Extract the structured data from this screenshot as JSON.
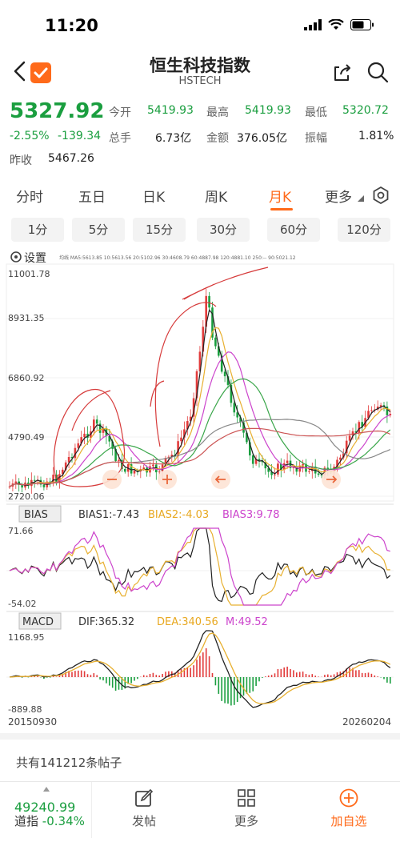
{
  "status": {
    "time": "11:20"
  },
  "header": {
    "title": "恒生科技指数",
    "subtitle": "HSTECH"
  },
  "quote": {
    "price": "5327.92",
    "change_pct": "-2.55%",
    "change_abs": "-139.34",
    "prev_close_label": "昨收",
    "prev_close": "5467.26",
    "open_label": "今开",
    "open": "5419.93",
    "high_label": "最高",
    "high": "5419.93",
    "low_label": "最低",
    "low": "5320.72",
    "volume_label": "总手",
    "volume": "6.73亿",
    "amount_label": "金额",
    "amount": "376.05亿",
    "amplitude_label": "振幅",
    "amplitude": "1.81%"
  },
  "period_tabs": [
    "分时",
    "五日",
    "日K",
    "周K",
    "月K",
    "更多"
  ],
  "active_period": "月K",
  "minute_tabs": [
    "1分",
    "5分",
    "15分",
    "30分",
    "60分",
    "120分"
  ],
  "chart": {
    "settings_label": "设置",
    "ma_legend": "均线 MA5:5613.85  10:5613.56  20:5102.96  30:4608.79  60:4887.98  120:4881.10  250:--  90:5021.12",
    "y_labels": [
      "11001.78",
      "8931.35",
      "6860.92",
      "4790.49",
      "2720.06"
    ],
    "bias": {
      "title": "BIAS",
      "bias1": "BIAS1:-7.43",
      "bias2": "BIAS2:-4.03",
      "bias3": "BIAS3:9.78",
      "max": "71.66",
      "min": "-54.02"
    },
    "macd": {
      "title": "MACD",
      "dif": "DIF:365.32",
      "dea": "DEA:340.56",
      "m": "M:49.52",
      "max": "1168.95",
      "min": "-889.88"
    },
    "date_start": "20150930",
    "date_end": "20260204",
    "colors": {
      "up": "#e23b3b",
      "down": "#1a9e3f",
      "ma5": "#222222",
      "ma10": "#e8b030",
      "ma20": "#cc44cc",
      "ma30": "#3aa64a"
    }
  },
  "forum": {
    "text": "共有141212条帖子"
  },
  "bottom": {
    "index_value": "49240.99",
    "index_label": "道指",
    "index_change": "-0.34%",
    "post_label": "发帖",
    "more_label": "更多",
    "watch_label": "加自选"
  }
}
